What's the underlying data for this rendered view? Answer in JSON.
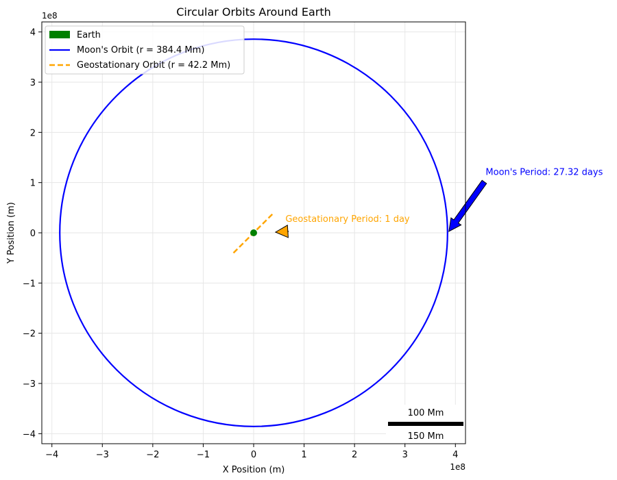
{
  "chart_data": {
    "type": "line",
    "title": "Circular Orbits Around Earth",
    "xlabel": "X Position (m)",
    "ylabel": "Y Position (m)",
    "x_offset_label": "1e8",
    "y_offset_label": "1e8",
    "xlim": [
      -4.2,
      4.2
    ],
    "ylim": [
      -4.2,
      4.2
    ],
    "xticks": [
      -4,
      -3,
      -2,
      -1,
      0,
      1,
      2,
      3,
      4
    ],
    "yticks": [
      -4,
      -3,
      -2,
      -1,
      0,
      1,
      2,
      3,
      4
    ],
    "xtick_labels": [
      "−4",
      "−3",
      "−2",
      "−1",
      "0",
      "1",
      "2",
      "3",
      "4"
    ],
    "ytick_labels": [
      "−4",
      "−3",
      "−2",
      "−1",
      "0",
      "1",
      "2",
      "3",
      "4"
    ],
    "grid": true,
    "legend_position": "upper-left",
    "series": [
      {
        "name": "Earth",
        "kind": "point",
        "x": 0,
        "y": 0,
        "color": "#008000"
      },
      {
        "name": "Moon's Orbit (r = 384.4 Mm)",
        "kind": "circle",
        "radius": 3.844,
        "color": "#0000ff",
        "style": "solid"
      },
      {
        "name": "Geostationary Orbit (r = 42.2 Mm)",
        "kind": "segment",
        "x": [
          -0.4,
          0.4
        ],
        "y": [
          -0.4,
          0.4
        ],
        "color": "#ffa500",
        "style": "dashed"
      }
    ],
    "annotations": [
      {
        "text": "Moon's Period: 27.32 days",
        "xy": [
          3.844,
          0
        ],
        "xytext": [
          4.6,
          1.15
        ],
        "color": "#0000ff",
        "arrow_color": "#0000ff"
      },
      {
        "text": "Geostationary Period: 1 day",
        "xy": [
          0.42,
          0
        ],
        "xytext": [
          0.63,
          0.22
        ],
        "color": "#ffa500",
        "arrow_color": "#ffa500"
      }
    ],
    "scale_bar": {
      "label_top": "100 Mm",
      "label_bottom": "150 Mm",
      "color": "#000000"
    }
  }
}
